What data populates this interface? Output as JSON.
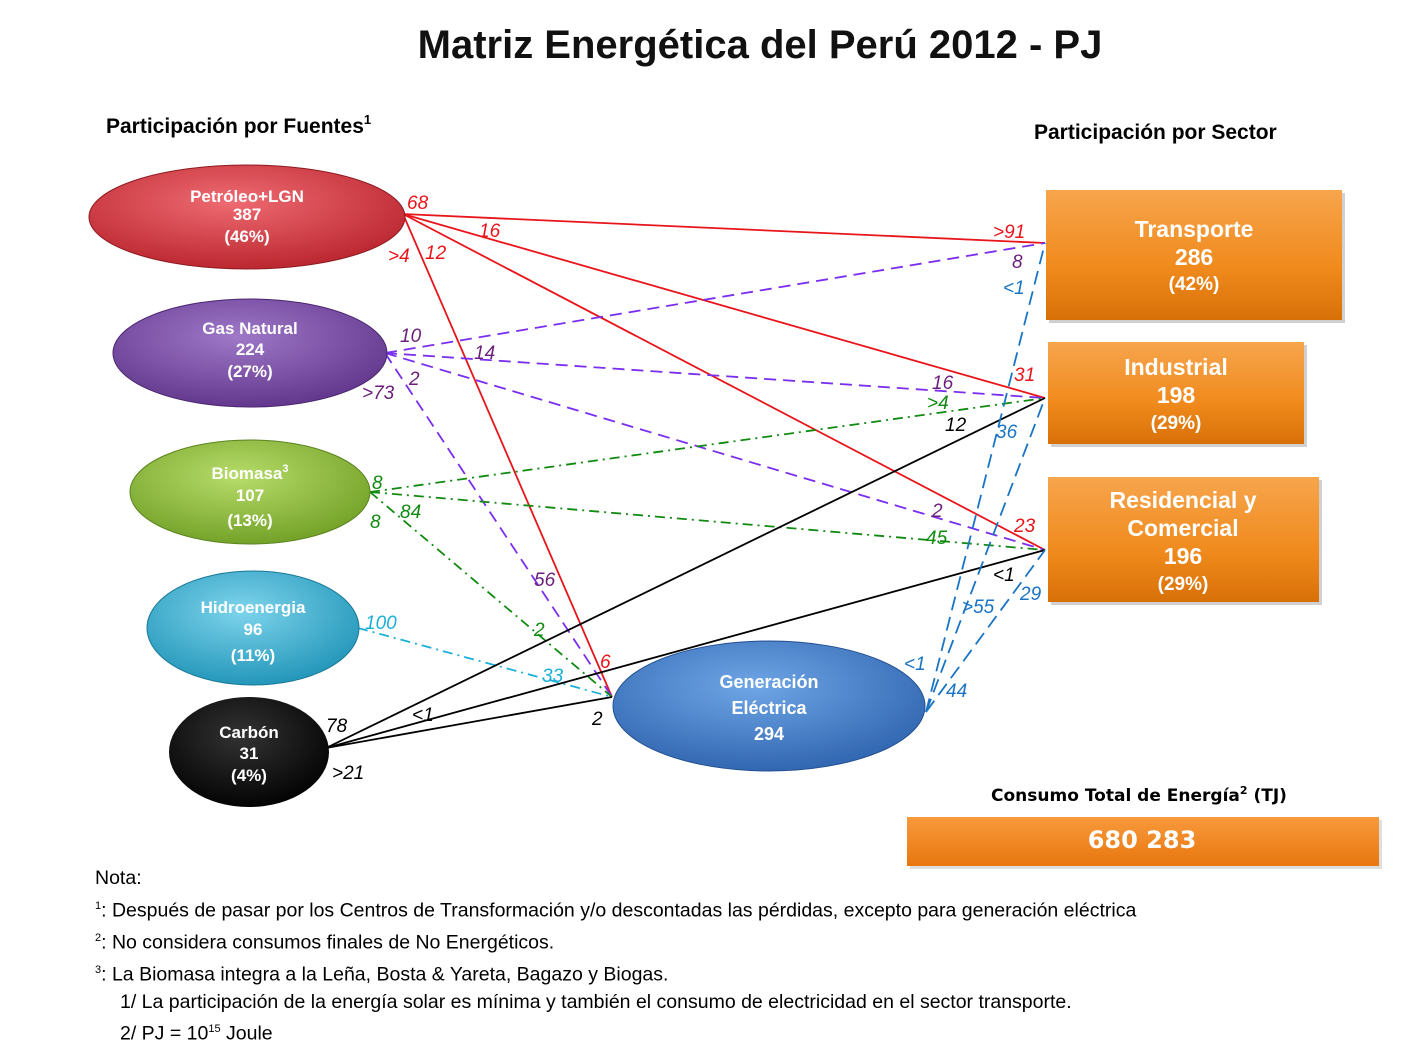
{
  "title": "Matriz Energética del Perú 2012 - PJ",
  "left_header": "Participación por Fuentes",
  "left_header_sup": "1",
  "right_header": "Participación por Sector",
  "sources": {
    "petroleo": {
      "name": "Petróleo+LGN",
      "value": "387",
      "pct": "(46%)"
    },
    "gas": {
      "name": "Gas Natural",
      "value": "224",
      "pct": "(27%)"
    },
    "biomasa": {
      "name": "Biomasa",
      "sup": "3",
      "value": "107",
      "pct": "(13%)"
    },
    "hidro": {
      "name": "Hidroenergia",
      "value": "96",
      "pct": "(11%)"
    },
    "carbon": {
      "name": "Carbón",
      "value": "31",
      "pct": "(4%)"
    }
  },
  "generacion": {
    "line1": "Generación",
    "line2": "Eléctrica",
    "value": "294"
  },
  "sectors": {
    "transporte": {
      "name": "Transporte",
      "value": "286",
      "pct": "(42%)"
    },
    "industrial": {
      "name": "Industrial",
      "value": "198",
      "pct": "(29%)"
    },
    "residencial": {
      "name1": "Residencial y",
      "name2": "Comercial",
      "value": "196",
      "pct": "(29%)"
    }
  },
  "flows": {
    "pet_68": "68",
    "pet_16": "16",
    "pet_gt4": ">4",
    "pet_12": "12",
    "pet_gt91": ">91",
    "pet_31": "31",
    "pet_23": "23",
    "pet_6": "6",
    "gas_10": "10",
    "gas_14": "14",
    "gas_2": "2",
    "gas_gt73": ">73",
    "gas_8": "8",
    "gas_16": "16",
    "gas_2b": "2",
    "gas_56": "56",
    "bio_8a": "8",
    "bio_8b": "8",
    "bio_84": "84",
    "bio_gt4": ">4",
    "bio_45": "45",
    "bio_2": "2",
    "hid_100": "100",
    "hid_33": "33",
    "car_78": "78",
    "car_lt1": "<1",
    "car_gt21": ">21",
    "car_12": "12",
    "car_lt1b": "<1",
    "car_2": "2",
    "gen_lt1a": "<1",
    "gen_36": "36",
    "gen_gt55": ">55",
    "gen_29": "29",
    "gen_lt1b": "<1",
    "gen_44": "44"
  },
  "total": {
    "label": "Consumo Total de Energía",
    "sup": "2",
    "unit": " (TJ)",
    "value": "680 283"
  },
  "notes": {
    "head": "Nota:",
    "n1_mark": "1",
    "n1": ": Después de pasar por los Centros de Transformación y/o descontadas las pérdidas, excepto para generación eléctrica",
    "n2_mark": "2",
    "n2": ": No considera consumos finales de No Energéticos.",
    "n3_mark": "3",
    "n3": ": La Biomasa integra a la Leña, Bosta & Yareta, Bagazo y Biogas.",
    "n4": "1/ La participación de la energía solar es mínima y también el consumo de electricidad en el sector transporte.",
    "n5_pre": "2/ PJ = 10",
    "n5_exp": "15",
    "n5_post": " Joule"
  },
  "colors": {
    "petroleo": "#d8313c",
    "gas": "#7d4fa6",
    "biomasa": "#8fbf3a",
    "hidro": "#34b4d4",
    "carbon": "#000000",
    "generacion": "#3d7fcd",
    "sector": "#f08a1c",
    "flow_red": "#e8151b",
    "flow_purple": "#7a2ef0",
    "flow_green": "#118a11",
    "flow_cyan": "#1ab0d8",
    "flow_blue": "#1a74c4"
  }
}
